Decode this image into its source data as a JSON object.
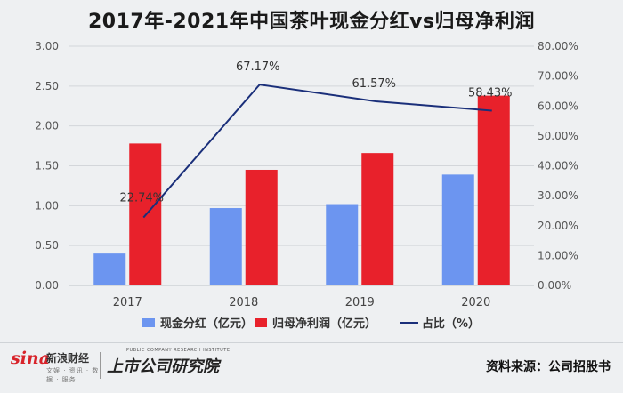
{
  "chart_data": {
    "type": "bar",
    "title": "2017年-2021年中国茶叶现金分红vs归母净利润",
    "categories": [
      "2017",
      "2018",
      "2019",
      "2020"
    ],
    "series": [
      {
        "name": "现金分红（亿元）",
        "type": "bar",
        "axis": "left",
        "color": "#6c95f0",
        "values": [
          0.4,
          0.97,
          1.02,
          1.39
        ]
      },
      {
        "name": "归母净利润（亿元）",
        "type": "bar",
        "axis": "left",
        "color": "#e8212b",
        "values": [
          1.78,
          1.45,
          1.66,
          2.38
        ]
      },
      {
        "name": "占比（%）",
        "type": "line",
        "axis": "right",
        "color": "#1a2f7a",
        "values": [
          22.74,
          67.17,
          61.57,
          58.43
        ]
      }
    ],
    "data_labels": [
      "22.74%",
      "67.17%",
      "61.57%",
      "58.43%"
    ],
    "left_axis": {
      "min": 0,
      "max": 3,
      "ticks": [
        "0.00",
        "0.50",
        "1.00",
        "1.50",
        "2.00",
        "2.50",
        "3.00"
      ]
    },
    "right_axis": {
      "min": 0,
      "max": 80,
      "ticks": [
        "0.00%",
        "10.00%",
        "20.00%",
        "30.00%",
        "40.00%",
        "50.00%",
        "60.00%",
        "70.00%",
        "80.00%"
      ]
    },
    "grid": true,
    "legend": "bottom"
  },
  "footer": {
    "sina_mark": "sina",
    "sina_name": "新浪财经",
    "sina_sub": "文娱 · 资讯 · 数据 · 服务",
    "institute_en": "PUBLIC COMPANY RESEARCH INSTITUTE",
    "institute_cn": "上市公司研究院",
    "source": "资料来源：公司招股书"
  }
}
